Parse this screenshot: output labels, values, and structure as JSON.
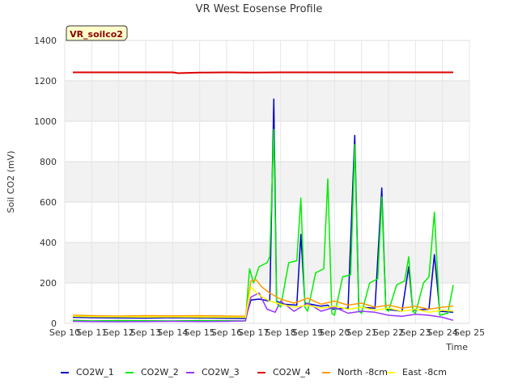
{
  "chart_data": {
    "type": "line",
    "title": "VR West Eosense Profile",
    "xlabel": "Time",
    "ylabel": "Soil CO2 (mV)",
    "ylim": [
      0,
      1400
    ],
    "yticks": [
      0,
      200,
      400,
      600,
      800,
      1000,
      1200,
      1400
    ],
    "xlim": [
      10,
      25
    ],
    "xtick_labels": [
      "Sep 10",
      "Sep 11",
      "Sep 12",
      "Sep 13",
      "Sep 14",
      "Sep 15",
      "Sep 16",
      "Sep 17",
      "Sep 18",
      "Sep 19",
      "Sep 20",
      "Sep 21",
      "Sep 22",
      "Sep 23",
      "Sep 24",
      "Sep 25"
    ],
    "badge": "VR_soilco2",
    "grid": true,
    "legend_position": "bottom",
    "series": [
      {
        "name": "CO2W_1",
        "color": "#0000cc",
        "x": [
          10.3,
          11,
          12,
          13,
          14,
          15,
          16,
          16.7,
          16.9,
          17.2,
          17.6,
          17.75,
          17.85,
          18.1,
          18.6,
          18.75,
          18.9,
          19.5,
          19.75,
          19.9,
          20.5,
          20.75,
          20.9,
          21.5,
          21.75,
          21.9,
          22.5,
          22.75,
          22.9,
          23.5,
          23.7,
          23.9,
          24.4
        ],
        "y": [
          30,
          28,
          27,
          26,
          28,
          27,
          25,
          24,
          115,
          120,
          110,
          1110,
          110,
          95,
          90,
          440,
          100,
          85,
          90,
          70,
          75,
          930,
          80,
          75,
          670,
          70,
          60,
          280,
          65,
          70,
          340,
          60,
          55
        ]
      },
      {
        "name": "CO2W_2",
        "color": "#00ee00",
        "x": [
          10.3,
          11,
          12,
          13,
          14,
          15,
          16,
          16.7,
          16.85,
          17.0,
          17.2,
          17.5,
          17.6,
          17.75,
          17.85,
          18.0,
          18.3,
          18.6,
          18.75,
          18.9,
          19.0,
          19.3,
          19.6,
          19.75,
          19.9,
          20.0,
          20.3,
          20.6,
          20.75,
          20.9,
          21.0,
          21.3,
          21.6,
          21.75,
          21.9,
          22.0,
          22.3,
          22.6,
          22.75,
          22.9,
          23.0,
          23.3,
          23.5,
          23.7,
          23.9,
          24.2,
          24.4
        ],
        "y": [
          15,
          12,
          14,
          13,
          12,
          14,
          13,
          12,
          270,
          200,
          280,
          300,
          330,
          960,
          100,
          80,
          300,
          310,
          620,
          80,
          60,
          250,
          270,
          715,
          50,
          40,
          230,
          240,
          885,
          60,
          50,
          200,
          220,
          625,
          70,
          60,
          190,
          210,
          330,
          60,
          50,
          200,
          230,
          550,
          40,
          50,
          190
        ]
      },
      {
        "name": "CO2W_3",
        "color": "#9933ff",
        "x": [
          10.3,
          11,
          12,
          13,
          14,
          15,
          16,
          16.7,
          16.9,
          17.2,
          17.5,
          17.8,
          18.0,
          18.5,
          19.0,
          19.5,
          20.0,
          20.5,
          21.0,
          21.5,
          22.0,
          22.5,
          23.0,
          23.5,
          24.0,
          24.4
        ],
        "y": [
          10,
          9,
          8,
          9,
          10,
          9,
          10,
          12,
          130,
          150,
          70,
          55,
          110,
          60,
          100,
          60,
          80,
          50,
          60,
          55,
          40,
          35,
          45,
          40,
          30,
          15
        ]
      },
      {
        "name": "CO2W_4",
        "color": "#dd0000",
        "x": [
          10.3,
          11,
          12,
          13,
          14,
          14.2,
          15,
          16,
          17,
          18,
          19,
          20,
          21,
          22,
          23,
          24,
          24.4
        ],
        "y": [
          1242,
          1242,
          1242,
          1242,
          1242,
          1238,
          1241,
          1242,
          1241,
          1242,
          1242,
          1242,
          1242,
          1242,
          1242,
          1242,
          1242
        ]
      },
      {
        "name": "North -8cm",
        "color": "#ff9900",
        "x": [
          10.3,
          11,
          12,
          13,
          14,
          15,
          16,
          16.7,
          16.9,
          17.1,
          17.3,
          17.6,
          18.0,
          18.5,
          19.0,
          19.5,
          20.0,
          20.5,
          21.0,
          21.5,
          22.0,
          22.5,
          23.0,
          23.5,
          24.0,
          24.4
        ],
        "y": [
          40,
          38,
          36,
          38,
          37,
          38,
          36,
          35,
          210,
          215,
          180,
          150,
          120,
          100,
          125,
          95,
          110,
          90,
          100,
          80,
          90,
          75,
          85,
          70,
          80,
          85
        ]
      },
      {
        "name": "East -8cm",
        "color": "#ffff00",
        "x": [
          10.3,
          11,
          12,
          13,
          14,
          15,
          16,
          16.7,
          16.9,
          17.2,
          17.6,
          18.0,
          18.5,
          19.0,
          19.5,
          20.0,
          20.5,
          21.0,
          21.5,
          22.0,
          22.5,
          23.0,
          23.5,
          24.0,
          24.4
        ],
        "y": [
          35,
          33,
          32,
          31,
          32,
          31,
          30,
          30,
          180,
          140,
          110,
          95,
          80,
          90,
          75,
          85,
          70,
          80,
          65,
          75,
          60,
          70,
          55,
          65,
          60
        ]
      }
    ]
  }
}
